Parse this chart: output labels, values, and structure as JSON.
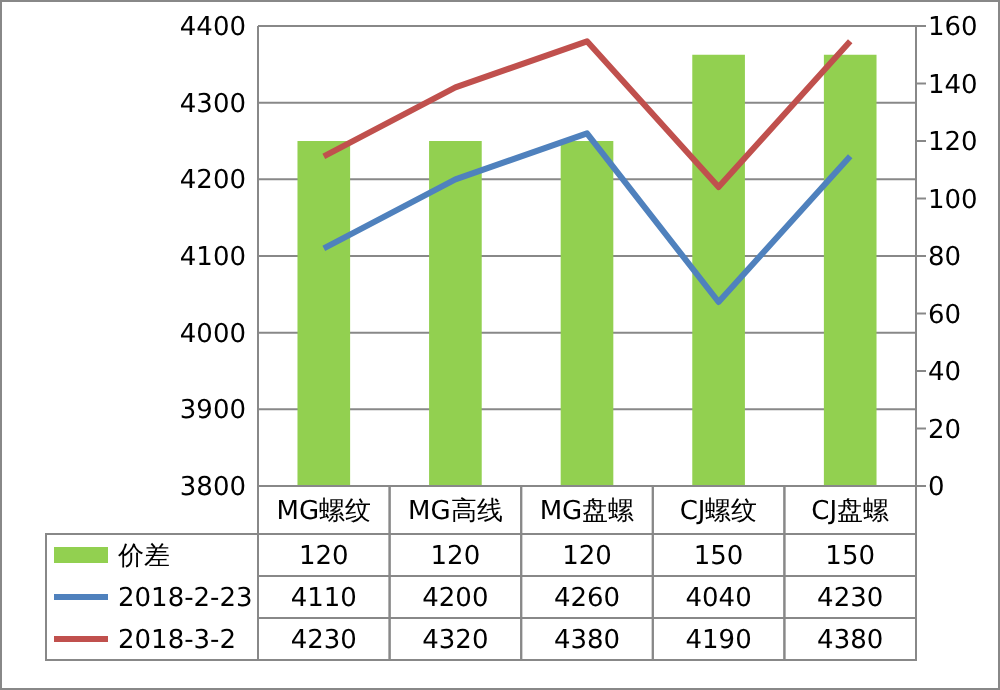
{
  "chart_data": {
    "type": "bar",
    "categories": [
      "MG螺纹",
      "MG高线",
      "MG盘螺",
      "CJ螺纹",
      "CJ盘螺"
    ],
    "series": [
      {
        "name": "价差",
        "axis": "y2",
        "color": "#92d050",
        "values": [
          120,
          120,
          120,
          150,
          150
        ]
      },
      {
        "name": "2018-2-23",
        "type": "line",
        "color": "#4f81bd",
        "values": [
          4110,
          4200,
          4260,
          4040,
          4230
        ]
      },
      {
        "name": "2018-3-2",
        "type": "line",
        "color": "#c0504d",
        "values": [
          4230,
          4320,
          4380,
          4190,
          4380
        ]
      }
    ],
    "ylim": [
      3800,
      4400
    ],
    "yticks": [
      3800,
      3900,
      4000,
      4100,
      4200,
      4300,
      4400
    ],
    "y2lim": [
      0,
      160
    ],
    "y2ticks": [
      0,
      20,
      40,
      60,
      80,
      100,
      120,
      140,
      160
    ],
    "grid": "y",
    "data_labels": true,
    "legend": "bottom",
    "marker": "none",
    "line_style": "solid"
  }
}
